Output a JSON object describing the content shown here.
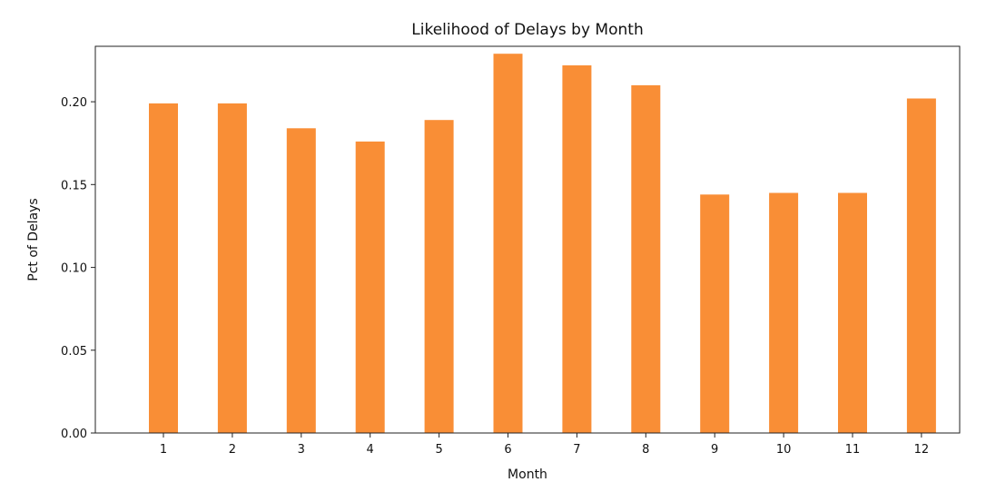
{
  "chart_data": {
    "type": "bar",
    "title": "Likelihood of Delays by Month",
    "xlabel": "Month",
    "ylabel": "Pct of Delays",
    "categories": [
      "1",
      "2",
      "3",
      "4",
      "5",
      "6",
      "7",
      "8",
      "9",
      "10",
      "11",
      "12"
    ],
    "values": [
      0.199,
      0.199,
      0.184,
      0.176,
      0.189,
      0.229,
      0.222,
      0.21,
      0.144,
      0.145,
      0.145,
      0.202
    ],
    "ylim": [
      0,
      0.2335
    ],
    "yticks": [
      "0.00",
      "0.05",
      "0.10",
      "0.15",
      "0.20"
    ],
    "bar_color": "#f98e36",
    "grid": false,
    "legend": "none"
  }
}
